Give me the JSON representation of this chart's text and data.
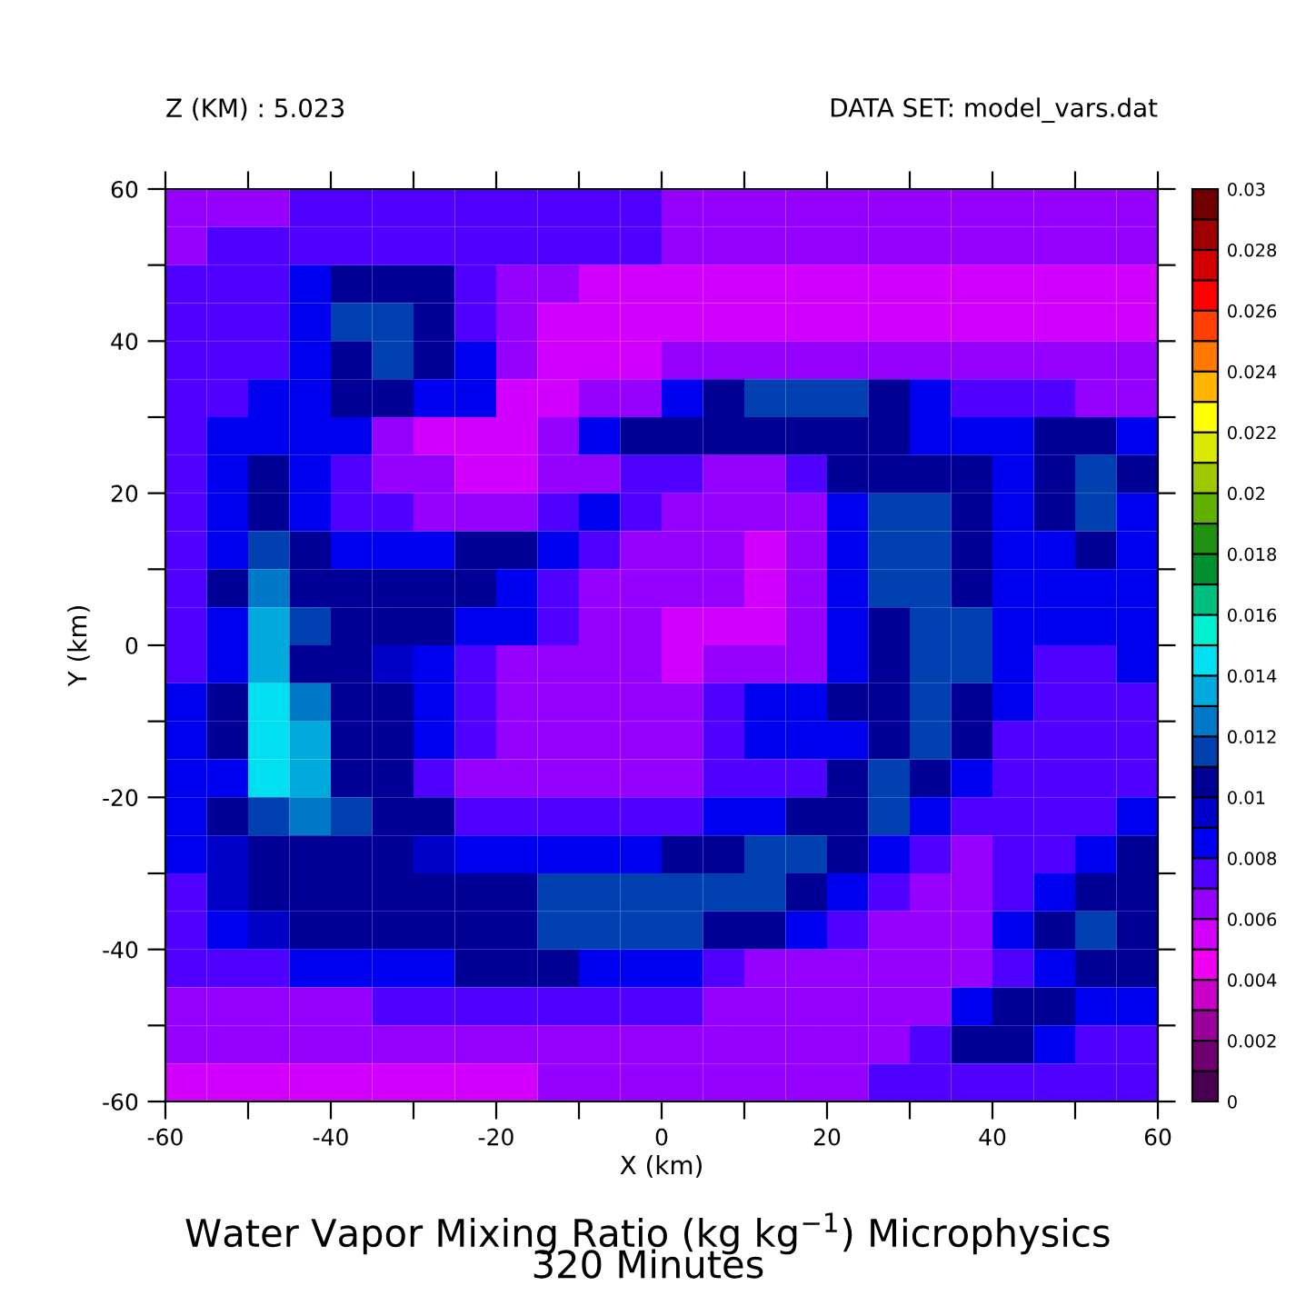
{
  "chart_data": {
    "type": "heatmap",
    "title": "Water Vapor Mixing Ratio (kg kg$^{−1}$) Microphysics",
    "subtitle": "320 Minutes",
    "xlabel": "X (km)",
    "ylabel": "Y (km)",
    "annotations": [
      "Z (KM) : 5.023",
      "DATA SET: model_vars.dat"
    ],
    "x": [
      -57.5,
      -52.5,
      -47.5,
      -42.5,
      -37.5,
      -32.5,
      -27.5,
      -22.5,
      -17.5,
      -12.5,
      -7.5,
      -2.5,
      2.5,
      7.5,
      12.5,
      17.5,
      22.5,
      27.5,
      32.5,
      37.5,
      42.5,
      47.5,
      52.5,
      57.5
    ],
    "y": [
      57.5,
      52.5,
      47.5,
      42.5,
      37.5,
      32.5,
      27.5,
      22.5,
      17.5,
      12.5,
      7.5,
      2.5,
      -2.5,
      -7.5,
      -12.5,
      -17.5,
      -22.5,
      -27.5,
      -32.5,
      -37.5,
      -42.5,
      -47.5,
      -52.5,
      -57.5
    ],
    "xlim": [
      -60,
      60
    ],
    "ylim": [
      -60,
      60
    ],
    "xticks": [
      -60,
      {
        "value": -50,
        "label": null
      },
      -40,
      {
        "value": -30,
        "label": null
      },
      -20,
      {
        "value": -10,
        "label": null
      },
      0,
      {
        "value": 10,
        "label": null
      },
      20,
      {
        "value": 30,
        "label": null
      },
      40,
      {
        "value": 50,
        "label": null
      },
      60
    ],
    "yticks": [
      -60,
      {
        "value": -50,
        "label": null
      },
      -40,
      {
        "value": -30,
        "label": null
      },
      -20,
      {
        "value": -10,
        "label": null
      },
      0,
      {
        "value": 10,
        "label": null
      },
      20,
      {
        "value": 30,
        "label": null
      },
      40,
      {
        "value": 50,
        "label": null
      },
      60
    ],
    "clim": [
      0,
      0.03
    ],
    "cticks": [
      0,
      0.002,
      0.004,
      0.006,
      0.008,
      0.01,
      0.012,
      0.014,
      0.016,
      0.018,
      0.02,
      0.022,
      0.024,
      0.026,
      0.028,
      0.03
    ],
    "colors": [
      "#4a0050",
      "#700070",
      "#9a009a",
      "#c800c8",
      "#f000f0",
      "#d200ff",
      "#9600ff",
      "#5000ff",
      "#0000f0",
      "#0000c8",
      "#000096",
      "#0040b0",
      "#0078c8",
      "#00aadc",
      "#00e0f0",
      "#00f0d0",
      "#00c080",
      "#009030",
      "#209010",
      "#60b000",
      "#a0c800",
      "#d8e800",
      "#ffff00",
      "#ffb400",
      "#ff7800",
      "#ff4000",
      "#ff0000",
      "#d20000",
      "#a00000",
      "#700000"
    ],
    "grid": false,
    "cells": [
      [
        0.0065,
        0.0065,
        0.0065,
        0.0075,
        0.0075,
        0.0075,
        0.0075,
        0.0075,
        0.0075,
        0.0075,
        0.0075,
        0.0075,
        0.0065,
        0.0065,
        0.0065,
        0.0065,
        0.0065,
        0.0065,
        0.0065,
        0.0065,
        0.0065,
        0.0065,
        0.0065,
        0.0065
      ],
      [
        0.0065,
        0.0075,
        0.0075,
        0.0075,
        0.0075,
        0.0075,
        0.0075,
        0.0075,
        0.0075,
        0.0075,
        0.0075,
        0.0075,
        0.0065,
        0.0065,
        0.0065,
        0.0065,
        0.0065,
        0.0065,
        0.0065,
        0.0065,
        0.0065,
        0.0065,
        0.0065,
        0.0065
      ],
      [
        0.0075,
        0.0075,
        0.0075,
        0.0085,
        0.0105,
        0.0105,
        0.0105,
        0.0075,
        0.0065,
        0.0065,
        0.0055,
        0.0055,
        0.0055,
        0.0055,
        0.0055,
        0.0055,
        0.0055,
        0.0055,
        0.0055,
        0.0055,
        0.0055,
        0.0055,
        0.0055,
        0.0055
      ],
      [
        0.0075,
        0.0075,
        0.0075,
        0.0085,
        0.0115,
        0.0115,
        0.0105,
        0.0075,
        0.0065,
        0.0055,
        0.0055,
        0.0055,
        0.0055,
        0.0055,
        0.0055,
        0.0055,
        0.0055,
        0.0055,
        0.0055,
        0.0055,
        0.0055,
        0.0055,
        0.0055,
        0.0055
      ],
      [
        0.0075,
        0.0075,
        0.0075,
        0.0085,
        0.0105,
        0.0115,
        0.0105,
        0.0085,
        0.0065,
        0.0055,
        0.0055,
        0.0055,
        0.0065,
        0.0065,
        0.0065,
        0.0065,
        0.0065,
        0.0065,
        0.0065,
        0.0065,
        0.0065,
        0.0065,
        0.0065,
        0.0065
      ],
      [
        0.0075,
        0.0075,
        0.0085,
        0.0085,
        0.0105,
        0.0105,
        0.0085,
        0.0085,
        0.0055,
        0.0055,
        0.0065,
        0.0065,
        0.0085,
        0.0105,
        0.0115,
        0.0115,
        0.0115,
        0.0105,
        0.0085,
        0.0075,
        0.0075,
        0.0075,
        0.0065,
        0.0065
      ],
      [
        0.0075,
        0.0085,
        0.0085,
        0.0085,
        0.0085,
        0.0065,
        0.0055,
        0.0055,
        0.0055,
        0.0065,
        0.0085,
        0.0105,
        0.0105,
        0.0105,
        0.0105,
        0.0105,
        0.0105,
        0.0105,
        0.0085,
        0.0085,
        0.0085,
        0.0105,
        0.0105,
        0.0085
      ],
      [
        0.0075,
        0.0085,
        0.0105,
        0.0085,
        0.0075,
        0.0065,
        0.0065,
        0.0055,
        0.0055,
        0.0065,
        0.0065,
        0.0075,
        0.0075,
        0.0065,
        0.0065,
        0.0075,
        0.0105,
        0.0105,
        0.0105,
        0.0105,
        0.0085,
        0.0105,
        0.0115,
        0.0105
      ],
      [
        0.0075,
        0.0085,
        0.0105,
        0.0085,
        0.0075,
        0.0075,
        0.0065,
        0.0065,
        0.0065,
        0.0075,
        0.0085,
        0.0075,
        0.0065,
        0.0065,
        0.0065,
        0.0065,
        0.0085,
        0.0115,
        0.0115,
        0.0105,
        0.0085,
        0.0105,
        0.0115,
        0.0085
      ],
      [
        0.0075,
        0.0085,
        0.0115,
        0.0105,
        0.0085,
        0.0085,
        0.0085,
        0.0105,
        0.0105,
        0.0085,
        0.0075,
        0.0065,
        0.0065,
        0.0065,
        0.0055,
        0.0065,
        0.0085,
        0.0115,
        0.0115,
        0.0105,
        0.0085,
        0.0085,
        0.0105,
        0.0085
      ],
      [
        0.0075,
        0.0105,
        0.0125,
        0.0105,
        0.0105,
        0.0105,
        0.0105,
        0.0105,
        0.0085,
        0.0075,
        0.0065,
        0.0065,
        0.0065,
        0.0065,
        0.0055,
        0.0065,
        0.0085,
        0.0115,
        0.0115,
        0.0105,
        0.0085,
        0.0085,
        0.0085,
        0.0085
      ],
      [
        0.0075,
        0.0085,
        0.0135,
        0.0115,
        0.0105,
        0.0105,
        0.0105,
        0.0085,
        0.0085,
        0.0075,
        0.0065,
        0.0065,
        0.0055,
        0.0055,
        0.0055,
        0.0065,
        0.0085,
        0.0105,
        0.0115,
        0.0115,
        0.0085,
        0.0085,
        0.0085,
        0.0085
      ],
      [
        0.0075,
        0.0085,
        0.0135,
        0.0105,
        0.0105,
        0.0095,
        0.0085,
        0.0075,
        0.0065,
        0.0065,
        0.0065,
        0.0065,
        0.0055,
        0.0065,
        0.0065,
        0.0065,
        0.0085,
        0.0105,
        0.0115,
        0.0115,
        0.0085,
        0.0075,
        0.0075,
        0.0085
      ],
      [
        0.0085,
        0.0105,
        0.0145,
        0.0125,
        0.0105,
        0.0105,
        0.0085,
        0.0075,
        0.0065,
        0.0065,
        0.0065,
        0.0065,
        0.0065,
        0.0075,
        0.0085,
        0.0085,
        0.0105,
        0.0105,
        0.0115,
        0.0105,
        0.0085,
        0.0075,
        0.0075,
        0.0075
      ],
      [
        0.0085,
        0.0105,
        0.0145,
        0.0135,
        0.0105,
        0.0105,
        0.0085,
        0.0075,
        0.0065,
        0.0065,
        0.0065,
        0.0065,
        0.0065,
        0.0075,
        0.0085,
        0.0085,
        0.0085,
        0.0105,
        0.0115,
        0.0105,
        0.0075,
        0.0075,
        0.0075,
        0.0075
      ],
      [
        0.0085,
        0.0085,
        0.0145,
        0.0135,
        0.0105,
        0.0105,
        0.0075,
        0.0065,
        0.0065,
        0.0065,
        0.0065,
        0.0065,
        0.0065,
        0.0075,
        0.0075,
        0.0075,
        0.0105,
        0.0115,
        0.0105,
        0.0085,
        0.0075,
        0.0075,
        0.0075,
        0.0075
      ],
      [
        0.0085,
        0.0105,
        0.0115,
        0.0125,
        0.0115,
        0.0105,
        0.0105,
        0.0075,
        0.0075,
        0.0075,
        0.0075,
        0.0075,
        0.0075,
        0.0085,
        0.0085,
        0.0105,
        0.0105,
        0.0115,
        0.0085,
        0.0075,
        0.0075,
        0.0075,
        0.0075,
        0.0085
      ],
      [
        0.0085,
        0.0095,
        0.0105,
        0.0105,
        0.0105,
        0.0105,
        0.0095,
        0.0085,
        0.0085,
        0.0085,
        0.0085,
        0.0085,
        0.0105,
        0.0105,
        0.0115,
        0.0115,
        0.0105,
        0.0085,
        0.0075,
        0.0065,
        0.0075,
        0.0075,
        0.0085,
        0.0105
      ],
      [
        0.0075,
        0.0095,
        0.0105,
        0.0105,
        0.0105,
        0.0105,
        0.0105,
        0.0105,
        0.0105,
        0.0115,
        0.0115,
        0.0115,
        0.0115,
        0.0115,
        0.0115,
        0.0105,
        0.0085,
        0.0075,
        0.0065,
        0.0065,
        0.0075,
        0.0085,
        0.0105,
        0.0105
      ],
      [
        0.0075,
        0.0085,
        0.0095,
        0.0105,
        0.0105,
        0.0105,
        0.0105,
        0.0105,
        0.0105,
        0.0115,
        0.0115,
        0.0115,
        0.0115,
        0.0105,
        0.0105,
        0.0085,
        0.0075,
        0.0065,
        0.0065,
        0.0065,
        0.0085,
        0.0105,
        0.0115,
        0.0105
      ],
      [
        0.0075,
        0.0075,
        0.0075,
        0.0085,
        0.0085,
        0.0085,
        0.0085,
        0.0105,
        0.0105,
        0.0105,
        0.0085,
        0.0085,
        0.0085,
        0.0075,
        0.0065,
        0.0065,
        0.0065,
        0.0065,
        0.0065,
        0.0065,
        0.0075,
        0.0085,
        0.0105,
        0.0105
      ],
      [
        0.0065,
        0.0065,
        0.0065,
        0.0065,
        0.0065,
        0.0075,
        0.0075,
        0.0075,
        0.0075,
        0.0075,
        0.0075,
        0.0075,
        0.0075,
        0.0065,
        0.0065,
        0.0065,
        0.0065,
        0.0065,
        0.0065,
        0.0085,
        0.0105,
        0.0105,
        0.0085,
        0.0085
      ],
      [
        0.0065,
        0.0065,
        0.0065,
        0.0065,
        0.0065,
        0.0065,
        0.0065,
        0.0065,
        0.0065,
        0.0065,
        0.0065,
        0.0065,
        0.0065,
        0.0065,
        0.0065,
        0.0065,
        0.0065,
        0.0065,
        0.0075,
        0.0105,
        0.0105,
        0.0085,
        0.0075,
        0.0075
      ],
      [
        0.0055,
        0.0055,
        0.0055,
        0.0055,
        0.0055,
        0.0055,
        0.0055,
        0.0055,
        0.0055,
        0.0065,
        0.0065,
        0.0065,
        0.0065,
        0.0065,
        0.0065,
        0.0065,
        0.0065,
        0.0075,
        0.0075,
        0.0075,
        0.0075,
        0.0075,
        0.0075,
        0.0075
      ]
    ]
  }
}
